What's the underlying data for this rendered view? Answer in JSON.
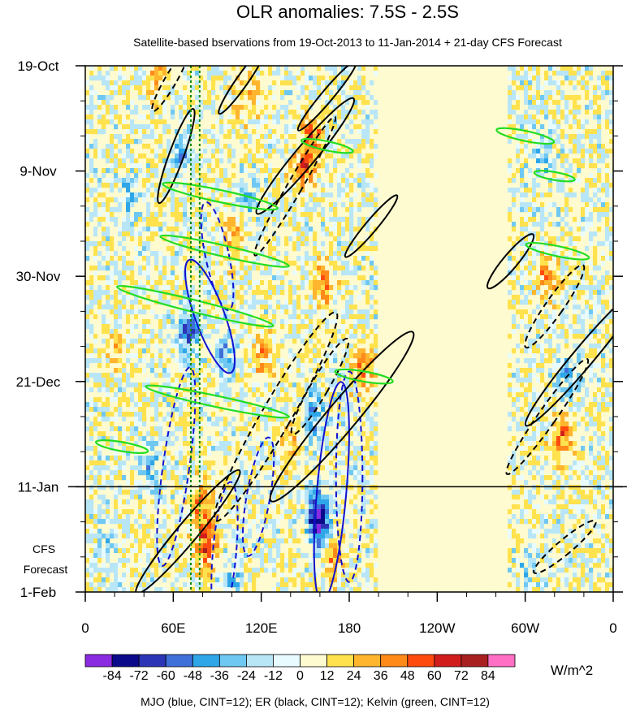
{
  "chart_data": {
    "type": "heatmap",
    "title": "OLR anomalies: 7.5S - 2.5S",
    "subtitle": "Satellite-based bservations from 19-Oct-2013 to 11-Jan-2014 + 21-day CFS Forecast",
    "x_axis": {
      "ticks": [
        {
          "lon": 0,
          "label": "0"
        },
        {
          "lon": 60,
          "label": "60E"
        },
        {
          "lon": 120,
          "label": "120E"
        },
        {
          "lon": 180,
          "label": "180"
        },
        {
          "lon": 240,
          "label": "120W"
        },
        {
          "lon": 300,
          "label": "60W"
        },
        {
          "lon": 360,
          "label": "0"
        }
      ],
      "range": [
        0,
        360
      ]
    },
    "y_axis": {
      "ticks": [
        {
          "day": 0,
          "label": "19-Oct"
        },
        {
          "day": 21,
          "label": "9-Nov"
        },
        {
          "day": 42,
          "label": "30-Nov"
        },
        {
          "day": 63,
          "label": "21-Dec"
        },
        {
          "day": 84,
          "label": "11-Jan"
        },
        {
          "day": 105,
          "label": "1-Feb"
        }
      ],
      "range": [
        0,
        105
      ],
      "forecast_start_day": 84,
      "forecast_label_lines": [
        "CFS",
        "Forecast"
      ]
    },
    "reference_longitudes": [
      72,
      78
    ],
    "colorbar": {
      "levels": [
        "-84",
        "-72",
        "-60",
        "-48",
        "-36",
        "-24",
        "-12",
        "0",
        "12",
        "24",
        "36",
        "48",
        "60",
        "72",
        "84"
      ],
      "colors": [
        "#8a2be2",
        "#0a0a8a",
        "#2b35b5",
        "#3f6fd9",
        "#2ea6e8",
        "#6fc8f2",
        "#b9e6f7",
        "#e8fbff",
        "#fffbd0",
        "#ffe24d",
        "#ffb52e",
        "#ff8a1a",
        "#ff4a0f",
        "#d21d1d",
        "#a82020",
        "#ff6fc4"
      ],
      "units": "W/m^2"
    },
    "overlay_legend": "MJO (blue, CINT=12); ER (black, CINT=12); Kelvin (green, CINT=12)",
    "field_features": [
      {
        "kind": "blob",
        "lon": 150,
        "day": 20,
        "sign": 1,
        "amp": 52
      },
      {
        "kind": "blob",
        "lon": 155,
        "day": 14,
        "sign": 1,
        "amp": 38
      },
      {
        "kind": "blob",
        "lon": 162,
        "day": 44,
        "sign": 1,
        "amp": 40
      },
      {
        "kind": "blob",
        "lon": 190,
        "day": 60,
        "sign": 1,
        "amp": 36
      },
      {
        "kind": "blob",
        "lon": 82,
        "day": 96,
        "sign": 1,
        "amp": 55
      },
      {
        "kind": "blob",
        "lon": 80,
        "day": 88,
        "sign": 1,
        "amp": 40
      },
      {
        "kind": "blob",
        "lon": 168,
        "day": 98,
        "sign": 1,
        "amp": 36
      },
      {
        "kind": "blob",
        "lon": 315,
        "day": 42,
        "sign": 1,
        "amp": 36
      },
      {
        "kind": "blob",
        "lon": 325,
        "day": 74,
        "sign": 1,
        "amp": 44
      },
      {
        "kind": "blob",
        "lon": 100,
        "day": 34,
        "sign": 1,
        "amp": 28
      },
      {
        "kind": "blob",
        "lon": 120,
        "day": 58,
        "sign": 1,
        "amp": 30
      },
      {
        "kind": "blob",
        "lon": 140,
        "day": 76,
        "sign": 1,
        "amp": 24
      },
      {
        "kind": "blob",
        "lon": 50,
        "day": 2,
        "sign": 1,
        "amp": 24
      },
      {
        "kind": "blob",
        "lon": 110,
        "day": 6,
        "sign": 1,
        "amp": 24
      },
      {
        "kind": "blob",
        "lon": 20,
        "day": 56,
        "sign": 1,
        "amp": 20
      },
      {
        "kind": "blob",
        "lon": 158,
        "day": 89,
        "sign": -1,
        "amp": 60
      },
      {
        "kind": "blob",
        "lon": 160,
        "day": 93,
        "sign": -1,
        "amp": 50
      },
      {
        "kind": "blob",
        "lon": 70,
        "day": 53,
        "sign": -1,
        "amp": 56
      },
      {
        "kind": "blob",
        "lon": 65,
        "day": 17,
        "sign": -1,
        "amp": 34
      },
      {
        "kind": "blob",
        "lon": 95,
        "day": 57,
        "sign": -1,
        "amp": 34
      },
      {
        "kind": "blob",
        "lon": 155,
        "day": 70,
        "sign": -1,
        "amp": 40
      },
      {
        "kind": "blob",
        "lon": 30,
        "day": 26,
        "sign": -1,
        "amp": 26
      },
      {
        "kind": "blob",
        "lon": 112,
        "day": 26,
        "sign": -1,
        "amp": 26
      },
      {
        "kind": "blob",
        "lon": 310,
        "day": 18,
        "sign": -1,
        "amp": 30
      },
      {
        "kind": "blob",
        "lon": 328,
        "day": 62,
        "sign": -1,
        "amp": 32
      },
      {
        "kind": "blob",
        "lon": 45,
        "day": 80,
        "sign": -1,
        "amp": 28
      },
      {
        "kind": "blob",
        "lon": 100,
        "day": 104,
        "sign": -1,
        "amp": 30
      },
      {
        "kind": "blob",
        "lon": 300,
        "day": 100,
        "sign": -1,
        "amp": 18
      },
      {
        "kind": "blob",
        "lon": 15,
        "day": 95,
        "sign": -1,
        "amp": 22
      }
    ],
    "contours": [
      {
        "system": "MJO",
        "color": "#1010d0",
        "dashed": true,
        "lon": 90,
        "day": 38,
        "rx_deg": 8,
        "ry_day": 11,
        "tilt": -12
      },
      {
        "system": "MJO",
        "color": "#1010d0",
        "dashed": false,
        "lon": 85,
        "day": 50,
        "rx_deg": 10,
        "ry_day": 12,
        "tilt": -20
      },
      {
        "system": "MJO",
        "color": "#1010d0",
        "dashed": true,
        "lon": 62,
        "day": 80,
        "rx_deg": 9,
        "ry_day": 20,
        "tilt": 8
      },
      {
        "system": "MJO",
        "color": "#1010d0",
        "dashed": true,
        "lon": 95,
        "day": 97,
        "rx_deg": 8,
        "ry_day": 14,
        "tilt": 5
      },
      {
        "system": "MJO",
        "color": "#1010d0",
        "dashed": true,
        "lon": 118,
        "day": 86,
        "rx_deg": 8,
        "ry_day": 12,
        "tilt": 10
      },
      {
        "system": "MJO",
        "color": "#1010d0",
        "dashed": false,
        "lon": 168,
        "day": 85,
        "rx_deg": 10,
        "ry_day": 22,
        "tilt": 5
      },
      {
        "system": "MJO",
        "color": "#1010d0",
        "dashed": true,
        "lon": 180,
        "day": 82,
        "rx_deg": 9,
        "ry_day": 21,
        "tilt": 0
      },
      {
        "system": "ER",
        "color": "#000000",
        "dashed": true,
        "lon": 58,
        "day": 3,
        "rx_deg": 4,
        "ry_day": 7,
        "tilt": 30
      },
      {
        "system": "ER",
        "color": "#000000",
        "dashed": false,
        "lon": 62,
        "day": 18,
        "rx_deg": 5,
        "ry_day": 10,
        "tilt": 20
      },
      {
        "system": "ER",
        "color": "#000000",
        "dashed": false,
        "lon": 107,
        "day": 3,
        "rx_deg": 4,
        "ry_day": 8,
        "tilt": 35
      },
      {
        "system": "ER",
        "color": "#000000",
        "dashed": false,
        "lon": 150,
        "day": 18,
        "rx_deg": 7,
        "ry_day": 15,
        "tilt": 40
      },
      {
        "system": "ER",
        "color": "#000000",
        "dashed": true,
        "lon": 143,
        "day": 24,
        "rx_deg": 5,
        "ry_day": 16,
        "tilt": 30
      },
      {
        "system": "ER",
        "color": "#000000",
        "dashed": false,
        "lon": 165,
        "day": 6,
        "rx_deg": 4,
        "ry_day": 9,
        "tilt": 40
      },
      {
        "system": "ER",
        "color": "#000000",
        "dashed": false,
        "lon": 195,
        "day": 32,
        "rx_deg": 4,
        "ry_day": 8,
        "tilt": 40
      },
      {
        "system": "ER",
        "color": "#000000",
        "dashed": true,
        "lon": 130,
        "day": 70,
        "rx_deg": 10,
        "ry_day": 24,
        "tilt": 30
      },
      {
        "system": "ER",
        "color": "#000000",
        "dashed": false,
        "lon": 175,
        "day": 70,
        "rx_deg": 10,
        "ry_day": 22,
        "tilt": 40
      },
      {
        "system": "ER",
        "color": "#000000",
        "dashed": false,
        "lon": 70,
        "day": 93,
        "rx_deg": 7,
        "ry_day": 16,
        "tilt": 40
      },
      {
        "system": "ER",
        "color": "#000000",
        "dashed": true,
        "lon": 160,
        "day": 64,
        "rx_deg": 6,
        "ry_day": 11,
        "tilt": 30
      },
      {
        "system": "ER",
        "color": "#000000",
        "dashed": false,
        "lon": 290,
        "day": 39,
        "rx_deg": 5,
        "ry_day": 7,
        "tilt": 40
      },
      {
        "system": "ER",
        "color": "#000000",
        "dashed": true,
        "lon": 320,
        "day": 48,
        "rx_deg": 6,
        "ry_day": 10,
        "tilt": 35
      },
      {
        "system": "ER",
        "color": "#000000",
        "dashed": false,
        "lon": 340,
        "day": 58,
        "rx_deg": 7,
        "ry_day": 18,
        "tilt": 40
      },
      {
        "system": "ER",
        "color": "#000000",
        "dashed": true,
        "lon": 315,
        "day": 70,
        "rx_deg": 6,
        "ry_day": 14,
        "tilt": 35
      },
      {
        "system": "ER",
        "color": "#000000",
        "dashed": true,
        "lon": 327,
        "day": 96,
        "rx_deg": 5,
        "ry_day": 8,
        "tilt": 50
      },
      {
        "system": "Kelvin",
        "color": "#22dd22",
        "dashed": false,
        "lon": 75,
        "day": 48,
        "rx_deg": 55,
        "ry_day": 1.2,
        "tilt": 14
      },
      {
        "system": "Kelvin",
        "color": "#22dd22",
        "dashed": false,
        "lon": 92,
        "day": 26,
        "rx_deg": 40,
        "ry_day": 1.2,
        "tilt": 12
      },
      {
        "system": "Kelvin",
        "color": "#22dd22",
        "dashed": false,
        "lon": 95,
        "day": 37,
        "rx_deg": 45,
        "ry_day": 1.1,
        "tilt": 13
      },
      {
        "system": "Kelvin",
        "color": "#22dd22",
        "dashed": false,
        "lon": 90,
        "day": 67,
        "rx_deg": 50,
        "ry_day": 1.1,
        "tilt": 12
      },
      {
        "system": "Kelvin",
        "color": "#22dd22",
        "dashed": false,
        "lon": 190,
        "day": 62,
        "rx_deg": 20,
        "ry_day": 1.0,
        "tilt": 10
      },
      {
        "system": "Kelvin",
        "color": "#22dd22",
        "dashed": false,
        "lon": 300,
        "day": 14,
        "rx_deg": 20,
        "ry_day": 1.0,
        "tilt": 12
      },
      {
        "system": "Kelvin",
        "color": "#22dd22",
        "dashed": false,
        "lon": 322,
        "day": 37,
        "rx_deg": 22,
        "ry_day": 1.0,
        "tilt": 12
      },
      {
        "system": "Kelvin",
        "color": "#22dd22",
        "dashed": false,
        "lon": 320,
        "day": 22,
        "rx_deg": 14,
        "ry_day": 0.8,
        "tilt": 10
      },
      {
        "system": "Kelvin",
        "color": "#22dd22",
        "dashed": false,
        "lon": 165,
        "day": 16,
        "rx_deg": 18,
        "ry_day": 0.9,
        "tilt": 12
      },
      {
        "system": "Kelvin",
        "color": "#22dd22",
        "dashed": false,
        "lon": 25,
        "day": 76,
        "rx_deg": 18,
        "ry_day": 0.9,
        "tilt": 10
      }
    ]
  }
}
